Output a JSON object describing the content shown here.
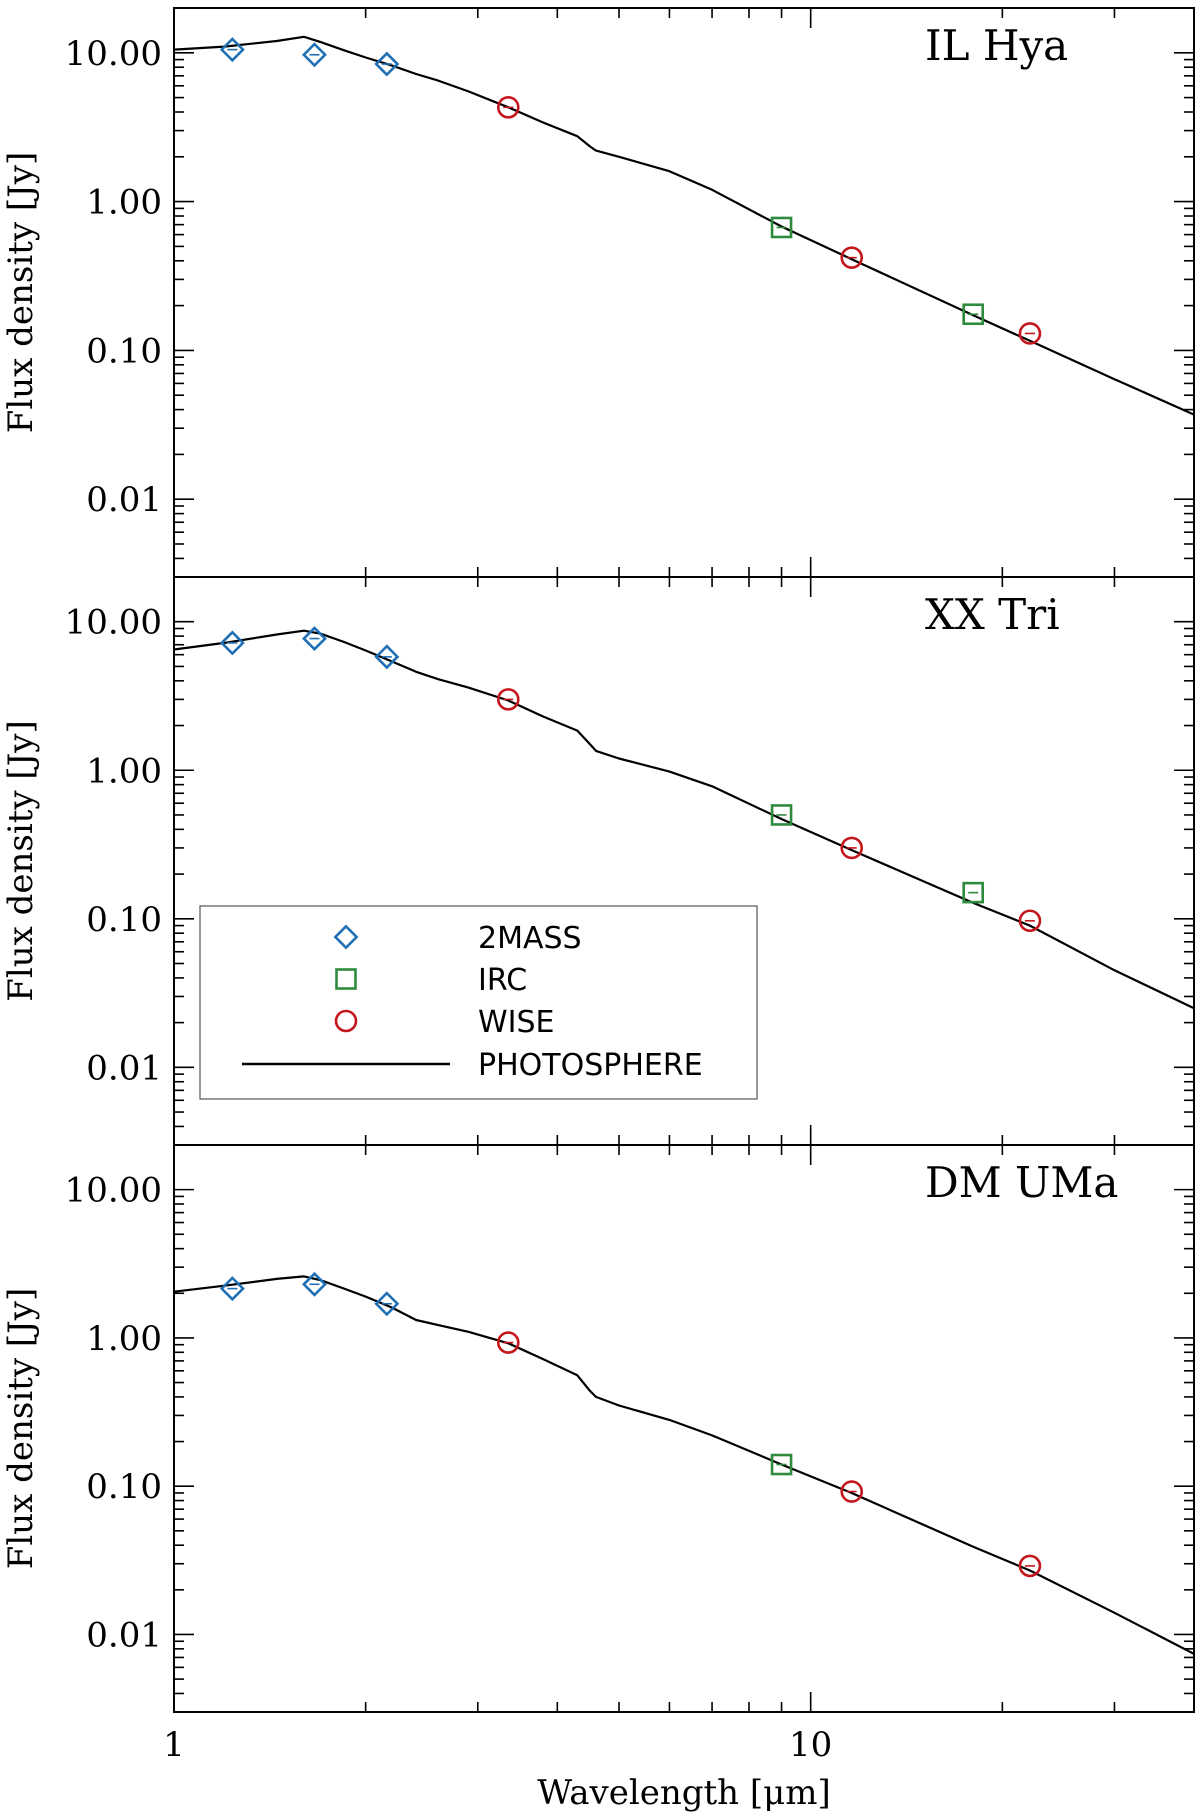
{
  "chart_data": [
    {
      "type": "line",
      "title": "IL Hya",
      "xlabel": "Wavelength [μm]",
      "ylabel": "Flux density [Jy]",
      "xscale": "log",
      "yscale": "log",
      "xlim": [
        1,
        40
      ],
      "ylim": [
        0.003,
        20
      ],
      "x_ticks": [
        {
          "value": 1,
          "label": ""
        },
        {
          "value": 10,
          "label": ""
        }
      ],
      "y_ticks": [
        {
          "value": 0.01,
          "label": "0.01"
        },
        {
          "value": 0.1,
          "label": "0.10"
        },
        {
          "value": 1,
          "label": "1.00"
        },
        {
          "value": 10,
          "label": "10.00"
        }
      ],
      "series": [
        {
          "name": "2MASS",
          "marker": "diamond",
          "color": "#1f6fb5",
          "x": [
            1.235,
            1.662,
            2.159
          ],
          "y": [
            10.5,
            9.7,
            8.4
          ]
        },
        {
          "name": "IRC",
          "marker": "square",
          "color": "#2e8b3e",
          "x": [
            9,
            18
          ],
          "y": [
            0.67,
            0.175
          ]
        },
        {
          "name": "WISE",
          "marker": "circle",
          "color": "#c4161c",
          "x": [
            3.35,
            11.6,
            22.1
          ],
          "y": [
            4.3,
            0.42,
            0.13
          ]
        },
        {
          "name": "PHOTOSPHERE",
          "marker": "line",
          "color": "#000000",
          "x": [
            1.0,
            1.2,
            1.45,
            1.6,
            1.7,
            1.85,
            2.0,
            2.2,
            2.4,
            2.6,
            2.9,
            3.35,
            3.8,
            4.3,
            4.5,
            4.6,
            5.0,
            6.0,
            7.0,
            9.0,
            11.6,
            18.0,
            22.1,
            30.0,
            40.0
          ],
          "y": [
            10.5,
            11.0,
            12.0,
            12.8,
            11.8,
            10.4,
            9.3,
            8.2,
            7.2,
            6.5,
            5.5,
            4.3,
            3.4,
            2.75,
            2.35,
            2.2,
            2.0,
            1.6,
            1.2,
            0.68,
            0.41,
            0.172,
            0.116,
            0.064,
            0.037
          ]
        }
      ]
    },
    {
      "type": "line",
      "title": "XX Tri",
      "xlabel": "Wavelength [μm]",
      "ylabel": "Flux density [Jy]",
      "xscale": "log",
      "yscale": "log",
      "xlim": [
        1,
        40
      ],
      "ylim": [
        0.003,
        20
      ],
      "x_ticks": [
        {
          "value": 1,
          "label": ""
        },
        {
          "value": 10,
          "label": ""
        }
      ],
      "y_ticks": [
        {
          "value": 0.01,
          "label": "0.01"
        },
        {
          "value": 0.1,
          "label": "0.10"
        },
        {
          "value": 1,
          "label": "1.00"
        },
        {
          "value": 10,
          "label": "10.00"
        }
      ],
      "legend": {
        "position": "lower-left",
        "entries": [
          {
            "label": "2MASS",
            "marker": "diamond",
            "color": "#1f6fb5"
          },
          {
            "label": "IRC",
            "marker": "square",
            "color": "#2e8b3e"
          },
          {
            "label": "WISE",
            "marker": "circle",
            "color": "#c4161c"
          },
          {
            "label": "PHOTOSPHERE",
            "marker": "line",
            "color": "#000000"
          }
        ]
      },
      "series": [
        {
          "name": "2MASS",
          "marker": "diamond",
          "color": "#1f6fb5",
          "x": [
            1.235,
            1.662,
            2.159
          ],
          "y": [
            7.2,
            7.7,
            5.8
          ]
        },
        {
          "name": "IRC",
          "marker": "square",
          "color": "#2e8b3e",
          "x": [
            9,
            18
          ],
          "y": [
            0.5,
            0.15
          ]
        },
        {
          "name": "WISE",
          "marker": "circle",
          "color": "#c4161c",
          "x": [
            3.35,
            11.6,
            22.1
          ],
          "y": [
            3.0,
            0.3,
            0.097
          ]
        },
        {
          "name": "PHOTOSPHERE",
          "marker": "line",
          "color": "#000000",
          "x": [
            1.0,
            1.2,
            1.45,
            1.6,
            1.7,
            1.85,
            2.0,
            2.2,
            2.4,
            2.6,
            2.9,
            3.35,
            3.8,
            4.3,
            4.5,
            4.6,
            5.0,
            6.0,
            7.0,
            9.0,
            11.6,
            18.0,
            22.1,
            30.0,
            40.0
          ],
          "y": [
            6.5,
            7.2,
            8.2,
            8.7,
            8.3,
            7.3,
            6.4,
            5.4,
            4.6,
            4.1,
            3.6,
            2.95,
            2.3,
            1.85,
            1.5,
            1.35,
            1.2,
            0.98,
            0.78,
            0.47,
            0.29,
            0.128,
            0.09,
            0.045,
            0.025
          ]
        }
      ]
    },
    {
      "type": "line",
      "title": "DM UMa",
      "xlabel": "Wavelength [μm]",
      "ylabel": "Flux density [Jy]",
      "xscale": "log",
      "yscale": "log",
      "xlim": [
        1,
        40
      ],
      "ylim": [
        0.003,
        20
      ],
      "x_ticks": [
        {
          "value": 1,
          "label": "1"
        },
        {
          "value": 10,
          "label": "10"
        }
      ],
      "y_ticks": [
        {
          "value": 0.01,
          "label": "0.01"
        },
        {
          "value": 0.1,
          "label": "0.10"
        },
        {
          "value": 1,
          "label": "1.00"
        },
        {
          "value": 10,
          "label": "10.00"
        }
      ],
      "series": [
        {
          "name": "2MASS",
          "marker": "diamond",
          "color": "#1f6fb5",
          "x": [
            1.235,
            1.662,
            2.159
          ],
          "y": [
            2.15,
            2.3,
            1.7
          ]
        },
        {
          "name": "IRC",
          "marker": "square",
          "color": "#2e8b3e",
          "x": [
            9
          ],
          "y": [
            0.14
          ]
        },
        {
          "name": "WISE",
          "marker": "circle",
          "color": "#c4161c",
          "x": [
            3.35,
            11.6,
            22.1
          ],
          "y": [
            0.93,
            0.092,
            0.029
          ]
        },
        {
          "name": "PHOTOSPHERE",
          "marker": "line",
          "color": "#000000",
          "x": [
            1.0,
            1.2,
            1.45,
            1.6,
            1.7,
            1.85,
            2.0,
            2.2,
            2.4,
            2.6,
            2.9,
            3.35,
            3.8,
            4.3,
            4.5,
            4.6,
            5.0,
            6.0,
            7.0,
            9.0,
            11.6,
            18.0,
            22.1,
            30.0,
            40.0
          ],
          "y": [
            2.05,
            2.25,
            2.5,
            2.6,
            2.45,
            2.15,
            1.9,
            1.6,
            1.32,
            1.22,
            1.1,
            0.92,
            0.72,
            0.56,
            0.44,
            0.4,
            0.35,
            0.28,
            0.22,
            0.14,
            0.09,
            0.039,
            0.027,
            0.014,
            0.0074
          ]
        }
      ]
    }
  ]
}
